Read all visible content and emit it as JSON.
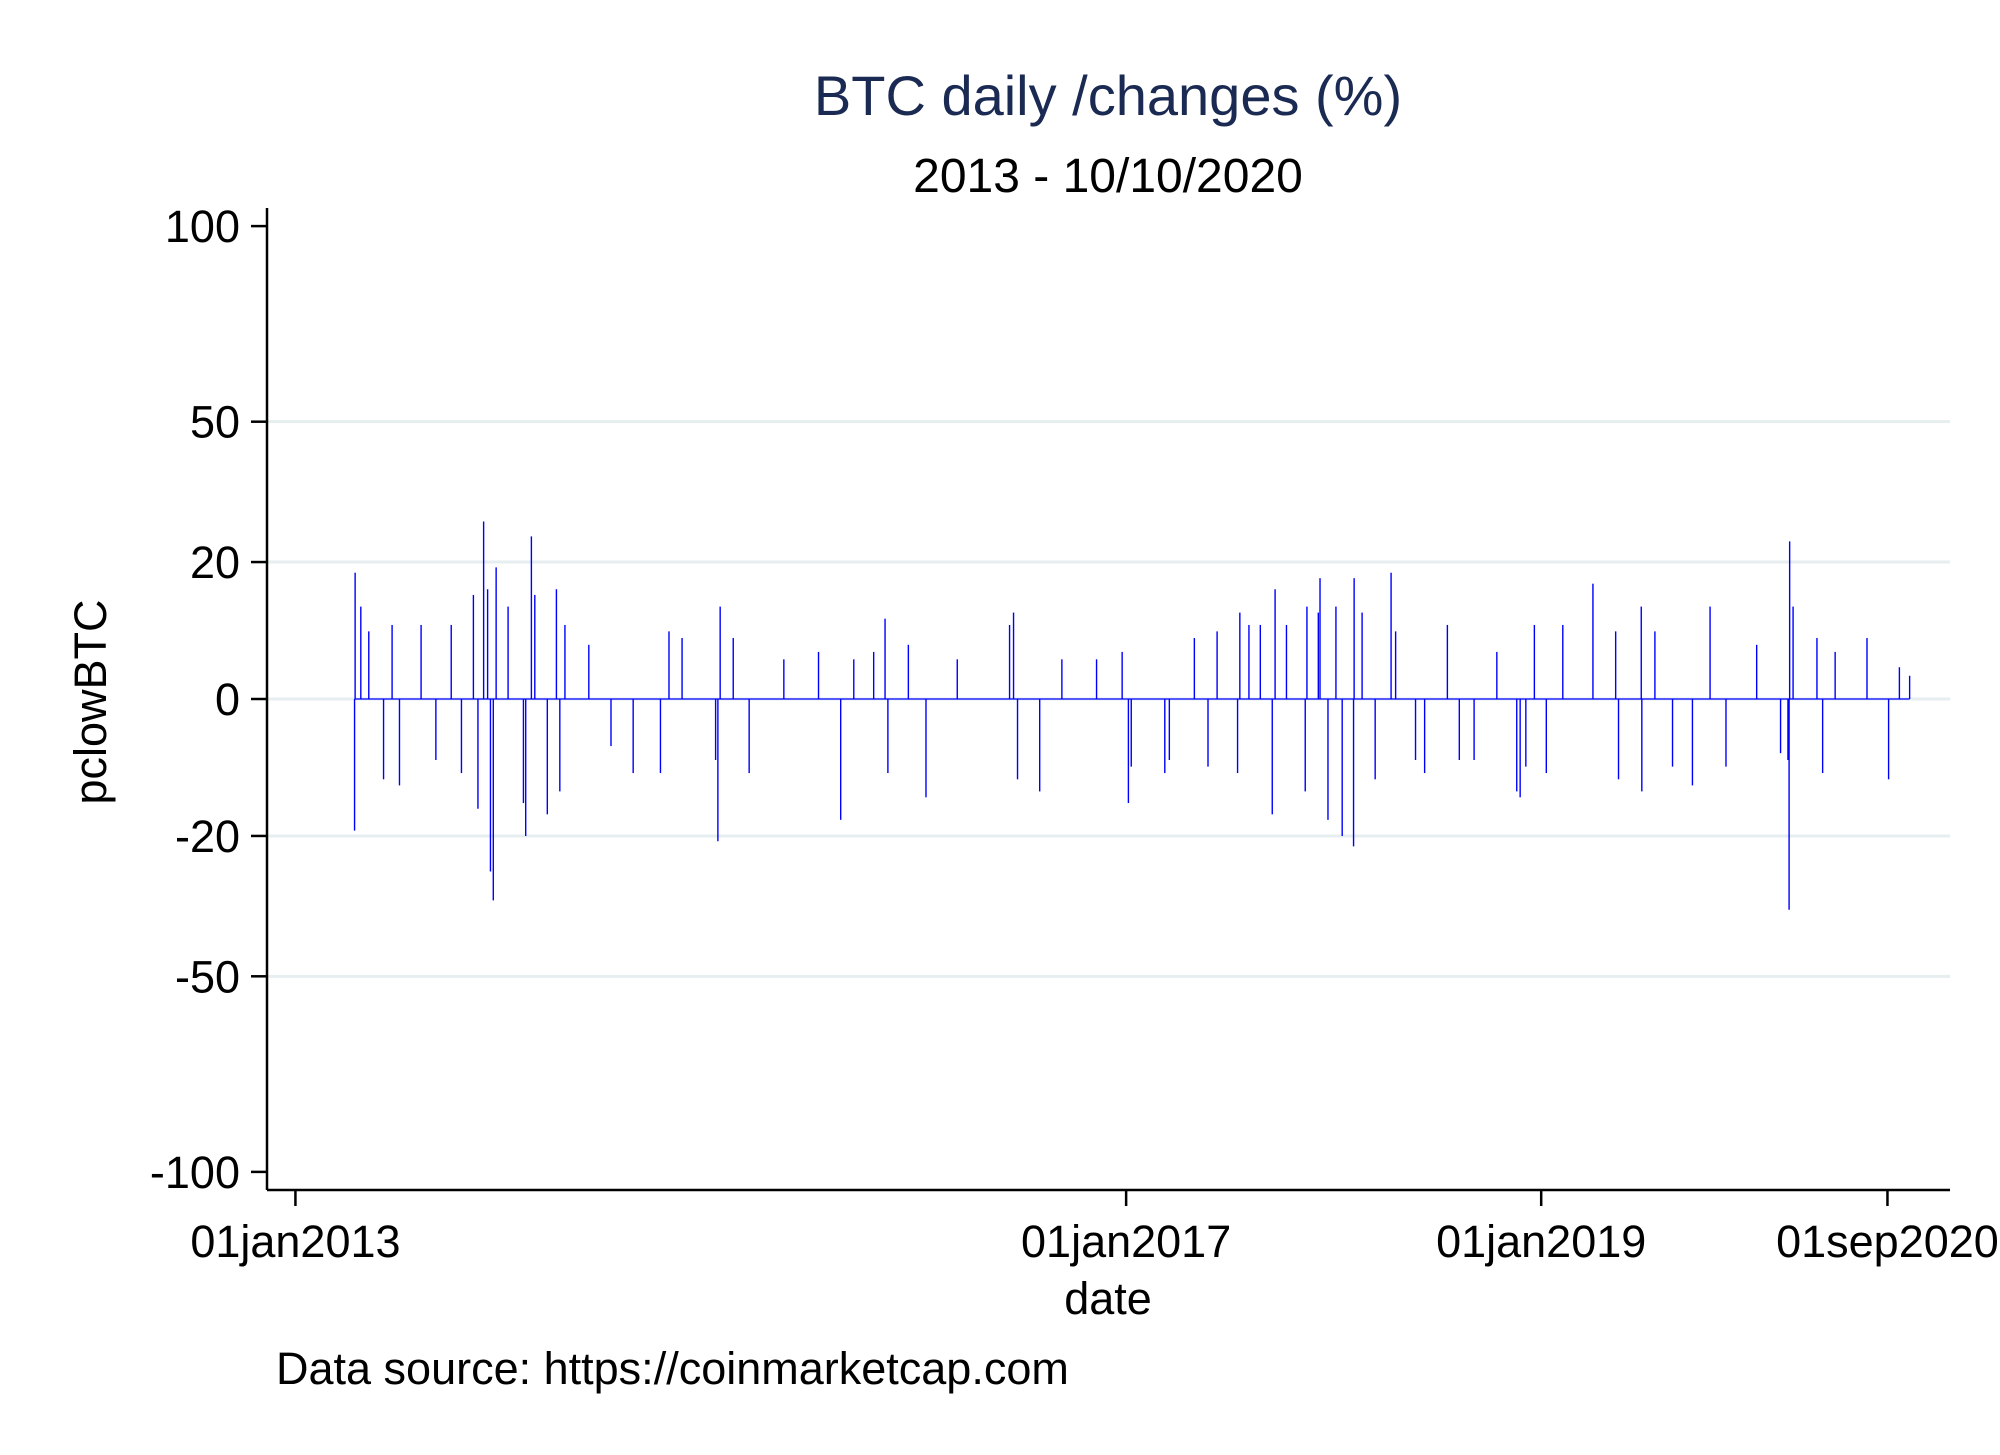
{
  "chart_data": {
    "type": "line",
    "title": "BTC daily /changes (%)",
    "subtitle": "2013 - 10/10/2020",
    "xlabel": "date",
    "ylabel": "pclowBTC",
    "note": "Data source: https://coinmarketcap.com",
    "x_ticks": [
      "01jan2013",
      "01jan2017",
      "01jan2019",
      "01sep2020"
    ],
    "y_ticks": [
      100,
      50,
      20,
      0,
      -20,
      -50,
      -100
    ],
    "ylim": [
      -105,
      105
    ],
    "xlim": [
      "2012-11-12",
      "2020-12-20"
    ],
    "grid": true,
    "legend": "none",
    "series": [
      {
        "color": "#0000ff",
        "points": [
          {
            "x": "2013-04-15",
            "y": -19
          },
          {
            "x": "2013-04-16",
            "y": 18
          },
          {
            "x": "2013-04-26",
            "y": 12
          },
          {
            "x": "2013-05-10",
            "y": 8
          },
          {
            "x": "2013-06-05",
            "y": -10
          },
          {
            "x": "2013-06-20",
            "y": 9
          },
          {
            "x": "2013-07-03",
            "y": -11
          },
          {
            "x": "2013-08-10",
            "y": 9
          },
          {
            "x": "2013-09-05",
            "y": -7
          },
          {
            "x": "2013-10-02",
            "y": 9
          },
          {
            "x": "2013-10-20",
            "y": -9
          },
          {
            "x": "2013-11-10",
            "y": 14
          },
          {
            "x": "2013-11-18",
            "y": -15
          },
          {
            "x": "2013-11-28",
            "y": 28
          },
          {
            "x": "2013-12-05",
            "y": 15
          },
          {
            "x": "2013-12-10",
            "y": -27
          },
          {
            "x": "2013-12-15",
            "y": -33
          },
          {
            "x": "2013-12-20",
            "y": 19
          },
          {
            "x": "2014-01-10",
            "y": 12
          },
          {
            "x": "2014-02-06",
            "y": -14
          },
          {
            "x": "2014-02-10",
            "y": -20
          },
          {
            "x": "2014-02-20",
            "y": 25
          },
          {
            "x": "2014-02-26",
            "y": 14
          },
          {
            "x": "2014-03-20",
            "y": -16
          },
          {
            "x": "2014-04-05",
            "y": 15
          },
          {
            "x": "2014-04-11",
            "y": -12
          },
          {
            "x": "2014-04-20",
            "y": 9
          },
          {
            "x": "2014-06-01",
            "y": 6
          },
          {
            "x": "2014-07-10",
            "y": -5
          },
          {
            "x": "2014-08-18",
            "y": -9
          },
          {
            "x": "2014-10-05",
            "y": -9
          },
          {
            "x": "2014-10-20",
            "y": 8
          },
          {
            "x": "2014-11-12",
            "y": 7
          },
          {
            "x": "2015-01-10",
            "y": -7
          },
          {
            "x": "2015-01-14",
            "y": -21
          },
          {
            "x": "2015-01-18",
            "y": 12
          },
          {
            "x": "2015-02-10",
            "y": 7
          },
          {
            "x": "2015-03-10",
            "y": -9
          },
          {
            "x": "2015-05-10",
            "y": 4
          },
          {
            "x": "2015-07-10",
            "y": 5
          },
          {
            "x": "2015-08-18",
            "y": -17
          },
          {
            "x": "2015-09-10",
            "y": 4
          },
          {
            "x": "2015-10-15",
            "y": 5
          },
          {
            "x": "2015-11-04",
            "y": 10
          },
          {
            "x": "2015-11-09",
            "y": -9
          },
          {
            "x": "2015-12-15",
            "y": 6
          },
          {
            "x": "2016-01-15",
            "y": -13
          },
          {
            "x": "2016-03-10",
            "y": 4
          },
          {
            "x": "2016-06-10",
            "y": 9
          },
          {
            "x": "2016-06-17",
            "y": 11
          },
          {
            "x": "2016-06-24",
            "y": -10
          },
          {
            "x": "2016-08-02",
            "y": -12
          },
          {
            "x": "2016-09-10",
            "y": 4
          },
          {
            "x": "2016-11-10",
            "y": 4
          },
          {
            "x": "2016-12-25",
            "y": 5
          },
          {
            "x": "2017-01-05",
            "y": -14
          },
          {
            "x": "2017-01-10",
            "y": -8
          },
          {
            "x": "2017-03-10",
            "y": -9
          },
          {
            "x": "2017-03-18",
            "y": -7
          },
          {
            "x": "2017-05-01",
            "y": 7
          },
          {
            "x": "2017-05-25",
            "y": -8
          },
          {
            "x": "2017-06-10",
            "y": 8
          },
          {
            "x": "2017-07-16",
            "y": -9
          },
          {
            "x": "2017-07-20",
            "y": 11
          },
          {
            "x": "2017-08-05",
            "y": 9
          },
          {
            "x": "2017-08-25",
            "y": 9
          },
          {
            "x": "2017-09-15",
            "y": -16
          },
          {
            "x": "2017-09-20",
            "y": 15
          },
          {
            "x": "2017-10-10",
            "y": 9
          },
          {
            "x": "2017-11-12",
            "y": -12
          },
          {
            "x": "2017-11-15",
            "y": 12
          },
          {
            "x": "2017-12-05",
            "y": 11
          },
          {
            "x": "2017-12-08",
            "y": 17
          },
          {
            "x": "2017-12-22",
            "y": -17
          },
          {
            "x": "2018-01-05",
            "y": 12
          },
          {
            "x": "2018-01-16",
            "y": -20
          },
          {
            "x": "2018-02-05",
            "y": -22
          },
          {
            "x": "2018-02-06",
            "y": 17
          },
          {
            "x": "2018-02-20",
            "y": 11
          },
          {
            "x": "2018-03-15",
            "y": -10
          },
          {
            "x": "2018-04-12",
            "y": 18
          },
          {
            "x": "2018-04-20",
            "y": 8
          },
          {
            "x": "2018-05-25",
            "y": -7
          },
          {
            "x": "2018-06-10",
            "y": -9
          },
          {
            "x": "2018-07-20",
            "y": 9
          },
          {
            "x": "2018-08-10",
            "y": -7
          },
          {
            "x": "2018-09-05",
            "y": -7
          },
          {
            "x": "2018-10-15",
            "y": 5
          },
          {
            "x": "2018-11-19",
            "y": -12
          },
          {
            "x": "2018-11-25",
            "y": -13
          },
          {
            "x": "2018-12-05",
            "y": -8
          },
          {
            "x": "2018-12-20",
            "y": 9
          },
          {
            "x": "2019-01-10",
            "y": -9
          },
          {
            "x": "2019-02-08",
            "y": 9
          },
          {
            "x": "2019-04-02",
            "y": 16
          },
          {
            "x": "2019-05-12",
            "y": 8
          },
          {
            "x": "2019-05-17",
            "y": -10
          },
          {
            "x": "2019-06-26",
            "y": 12
          },
          {
            "x": "2019-06-27",
            "y": -12
          },
          {
            "x": "2019-07-20",
            "y": 8
          },
          {
            "x": "2019-08-20",
            "y": -8
          },
          {
            "x": "2019-09-24",
            "y": -11
          },
          {
            "x": "2019-10-25",
            "y": 12
          },
          {
            "x": "2019-11-22",
            "y": -8
          },
          {
            "x": "2020-01-15",
            "y": 6
          },
          {
            "x": "2020-02-26",
            "y": -6
          },
          {
            "x": "2020-03-10",
            "y": -7
          },
          {
            "x": "2020-03-12",
            "y": -35
          },
          {
            "x": "2020-03-13",
            "y": 24
          },
          {
            "x": "2020-03-19",
            "y": 12
          },
          {
            "x": "2020-04-30",
            "y": 7
          },
          {
            "x": "2020-05-10",
            "y": -9
          },
          {
            "x": "2020-06-01",
            "y": 5
          },
          {
            "x": "2020-07-27",
            "y": 7
          },
          {
            "x": "2020-09-03",
            "y": -10
          },
          {
            "x": "2020-09-22",
            "y": 3
          },
          {
            "x": "2020-10-10",
            "y": 2
          }
        ]
      }
    ]
  }
}
